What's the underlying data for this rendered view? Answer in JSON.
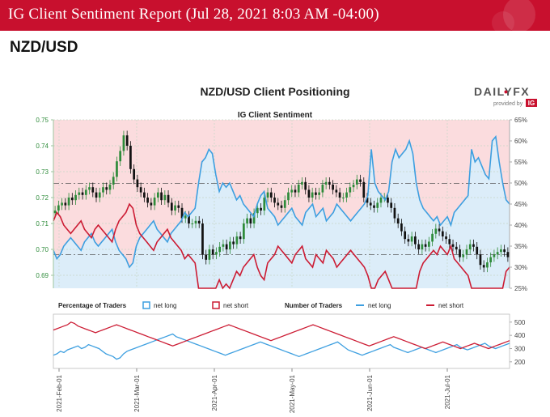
{
  "banner": {
    "title": "IG Client Sentiment Report (Jul 28, 2021 8:03 AM -04:00)"
  },
  "pair_title": "NZD/USD",
  "brand": {
    "name": "DAILYFX",
    "dot": "•",
    "provided_by": "provided by",
    "ig": "IG"
  },
  "colors": {
    "banner": "#c8102e",
    "net_long": "#3d9fe0",
    "net_short": "#cc1b33",
    "price_up": "#2e8b3a",
    "price_down": "#111111",
    "long_area": "#dcedf9",
    "short_area": "#fbdcde"
  },
  "chart_data": {
    "type": "line",
    "title": "NZD/USD Client Positioning",
    "subtitle": "IG Client Sentiment",
    "price_axis": {
      "ylim": [
        0.685,
        0.75
      ],
      "ticks": [
        "0.69",
        "0.70",
        "0.71",
        "0.72",
        "0.73",
        "0.74",
        "0.75"
      ]
    },
    "percent_axis": {
      "ylim": [
        25,
        65
      ],
      "ticks": [
        "25%",
        "30%",
        "35%",
        "40%",
        "45%",
        "50%",
        "55%",
        "60%",
        "65%"
      ]
    },
    "x_ticks": [
      "2021-Feb-01",
      "2021-Mar-01",
      "2021-Apr-01",
      "2021-May-01",
      "2021-Jun-01",
      "2021-Jul-01"
    ],
    "lower_legend": {
      "pct_label": "Percentage of Traders",
      "num_label": "Number of Traders",
      "net_long": "net long",
      "net_short": "net short"
    },
    "lower_axis": {
      "ylim": [
        150,
        560
      ],
      "ticks": [
        "200",
        "300",
        "400",
        "500"
      ]
    },
    "price_close": [
      0.715,
      0.717,
      0.718,
      0.717,
      0.72,
      0.719,
      0.721,
      0.722,
      0.721,
      0.723,
      0.724,
      0.722,
      0.72,
      0.722,
      0.724,
      0.723,
      0.725,
      0.728,
      0.734,
      0.738,
      0.744,
      0.74,
      0.731,
      0.727,
      0.724,
      0.722,
      0.72,
      0.718,
      0.717,
      0.72,
      0.722,
      0.719,
      0.721,
      0.718,
      0.715,
      0.717,
      0.716,
      0.712,
      0.713,
      0.71,
      0.71,
      0.711,
      0.71,
      0.698,
      0.696,
      0.7,
      0.698,
      0.699,
      0.701,
      0.702,
      0.7,
      0.703,
      0.702,
      0.705,
      0.704,
      0.71,
      0.712,
      0.71,
      0.714,
      0.716,
      0.715,
      0.72,
      0.722,
      0.72,
      0.718,
      0.717,
      0.716,
      0.719,
      0.722,
      0.723,
      0.722,
      0.725,
      0.726,
      0.723,
      0.72,
      0.722,
      0.721,
      0.722,
      0.725,
      0.726,
      0.725,
      0.723,
      0.722,
      0.72,
      0.72,
      0.722,
      0.724,
      0.725,
      0.727,
      0.726,
      0.72,
      0.718,
      0.717,
      0.716,
      0.718,
      0.72,
      0.72,
      0.718,
      0.716,
      0.712,
      0.71,
      0.707,
      0.704,
      0.703,
      0.705,
      0.702,
      0.7,
      0.702,
      0.701,
      0.703,
      0.706,
      0.708,
      0.707,
      0.705,
      0.704,
      0.702,
      0.701,
      0.7,
      0.697,
      0.698,
      0.7,
      0.702,
      0.701,
      0.698,
      0.694,
      0.693,
      0.695,
      0.697,
      0.698,
      0.699,
      0.7,
      0.699,
      0.697
    ],
    "percent_long": [
      34,
      32,
      33,
      35,
      36,
      37,
      36,
      35,
      34,
      36,
      37,
      38,
      36,
      35,
      36,
      37,
      38,
      39,
      36,
      34,
      33,
      32,
      30,
      31,
      35,
      37,
      38,
      39,
      40,
      41,
      39,
      38,
      37,
      36,
      38,
      39,
      40,
      41,
      43,
      42,
      43,
      44,
      50,
      55,
      56,
      58,
      57,
      52,
      48,
      50,
      49,
      50,
      48,
      46,
      47,
      45,
      44,
      43,
      42,
      45,
      47,
      48,
      44,
      43,
      42,
      40,
      41,
      42,
      43,
      44,
      42,
      41,
      40,
      43,
      44,
      45,
      42,
      43,
      44,
      41,
      42,
      43,
      45,
      44,
      43,
      42,
      41,
      42,
      43,
      44,
      45,
      47,
      58,
      50,
      48,
      47,
      46,
      48,
      55,
      58,
      56,
      57,
      58,
      60,
      57,
      50,
      46,
      44,
      43,
      42,
      41,
      42,
      40,
      41,
      42,
      40,
      43,
      44,
      45,
      46,
      47,
      58,
      55,
      56,
      54,
      52,
      51,
      60,
      61,
      55,
      50,
      46,
      45
    ],
    "lower_series": [
      {
        "name": "net long",
        "values": [
          250,
          260,
          280,
          270,
          290,
          300,
          310,
          320,
          300,
          310,
          330,
          320,
          310,
          300,
          280,
          260,
          250,
          240,
          220,
          230,
          260,
          280,
          290,
          300,
          310,
          320,
          330,
          340,
          350,
          360,
          370,
          380,
          390,
          400,
          410,
          390,
          380,
          370,
          360,
          350,
          340,
          330,
          320,
          310,
          300,
          290,
          280,
          270,
          260,
          250,
          260,
          270,
          280,
          290,
          300,
          310,
          320,
          330,
          340,
          350,
          340,
          330,
          320,
          310,
          300,
          290,
          280,
          270,
          260,
          250,
          240,
          250,
          260,
          270,
          280,
          290,
          300,
          310,
          320,
          330,
          340,
          350,
          330,
          310,
          290,
          280,
          270,
          260,
          250,
          260,
          270,
          280,
          290,
          300,
          310,
          320,
          330,
          310,
          300,
          290,
          280,
          270,
          280,
          290,
          300,
          310,
          300,
          290,
          280,
          270,
          280,
          290,
          300,
          310,
          320,
          330,
          310,
          300,
          290,
          300,
          310,
          320,
          330,
          340,
          320,
          310,
          300,
          310,
          320,
          330,
          340
        ],
        "color_key": "net_long"
      },
      {
        "name": "net short",
        "values": [
          440,
          450,
          460,
          470,
          480,
          500,
          490,
          470,
          460,
          450,
          440,
          430,
          420,
          430,
          440,
          450,
          460,
          470,
          480,
          470,
          460,
          450,
          440,
          430,
          420,
          410,
          400,
          390,
          380,
          370,
          360,
          350,
          340,
          330,
          320,
          330,
          340,
          350,
          360,
          370,
          380,
          390,
          400,
          410,
          420,
          430,
          440,
          450,
          460,
          470,
          480,
          470,
          460,
          450,
          440,
          430,
          420,
          410,
          400,
          390,
          380,
          370,
          360,
          370,
          380,
          390,
          400,
          410,
          420,
          430,
          440,
          450,
          460,
          470,
          480,
          470,
          460,
          450,
          440,
          430,
          420,
          410,
          400,
          390,
          380,
          370,
          360,
          350,
          340,
          330,
          320,
          330,
          340,
          350,
          360,
          370,
          380,
          390,
          380,
          370,
          360,
          350,
          340,
          330,
          320,
          310,
          300,
          310,
          320,
          330,
          340,
          350,
          340,
          330,
          320,
          310,
          300,
          310,
          320,
          330,
          340,
          330,
          320,
          310,
          300,
          310,
          320,
          330,
          340,
          350,
          360
        ],
        "color_key": "net_short"
      }
    ]
  }
}
